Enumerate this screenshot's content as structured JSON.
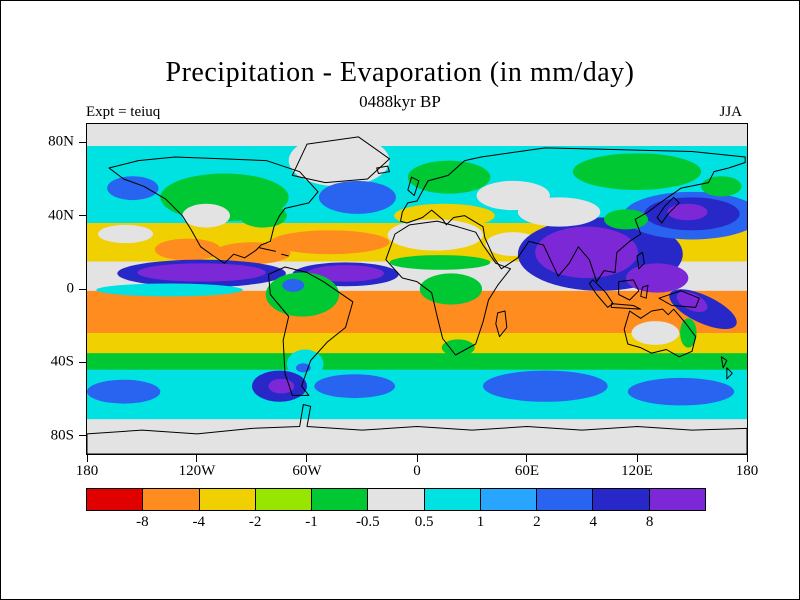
{
  "header": {
    "title": "Precipitation - Evaporation (in mm/day)",
    "subtitle": "0488kyr BP",
    "experiment_label": "Expt = teiuq",
    "season_label": "JJA"
  },
  "chart_data": {
    "type": "heatmap",
    "title": "Precipitation - Evaporation (in mm/day)",
    "subtitle": "0488kyr BP",
    "experiment": "teiuq",
    "season": "JJA",
    "units": "mm/day",
    "projection": "global equirectangular map, lon 180W-180E, lat 90N-90S",
    "lon_ticks": [
      "180",
      "120W",
      "60W",
      "0",
      "60E",
      "120E",
      "180"
    ],
    "lat_ticks": [
      "80N",
      "40N",
      "0",
      "40S",
      "80S"
    ],
    "grid": false,
    "colorbar": {
      "orientation": "horizontal",
      "levels": [
        -8,
        -4,
        -2,
        -1,
        -0.5,
        0.5,
        1,
        2,
        4,
        8
      ],
      "labels": [
        "-8",
        "-4",
        "-2",
        "-1",
        "-0.5",
        "0.5",
        "1",
        "2",
        "4",
        "8"
      ],
      "colors": [
        "#e10000",
        "#ff8c1e",
        "#f0d000",
        "#96e600",
        "#00c832",
        "#e3e3e3",
        "#00e1e1",
        "#28a5ff",
        "#2864f0",
        "#2828c8",
        "#7d28d7"
      ]
    },
    "features": [
      "Strong negative band (orange, -8 to -4 mm/day) across southern tropical oceans ~0-25S in Pacific, Atlantic and Indian oceans",
      "Negative (orange/yellow) subtropical North Atlantic, Caribbean and eastern North Pacific near Mexico",
      "Near-zero (gray) over Sahara, Arabia, central Asia, western Australia and polar regions",
      "Strong positive (purple, >8 mm/day) over Indian monsoon region, Bay of Bengal and Southeast Asia",
      "Positive ITCZ band (dark blue/purple) near 5-10N across eastern Pacific and Atlantic",
      "Dark blue positive region in northwest Pacific near Japan",
      "SPCZ dark blue/purple band southeast of New Guinea",
      "Dark blue/purple patch west of southern Chile",
      "Blue positive patches in Southern Ocean 40-60S; mid-latitude oceans weakly positive (cyan 0.5-1)",
      "Yellow-to-green transition bands ~25-45S and green over Canada, northern Europe and eastern Siberia"
    ]
  }
}
